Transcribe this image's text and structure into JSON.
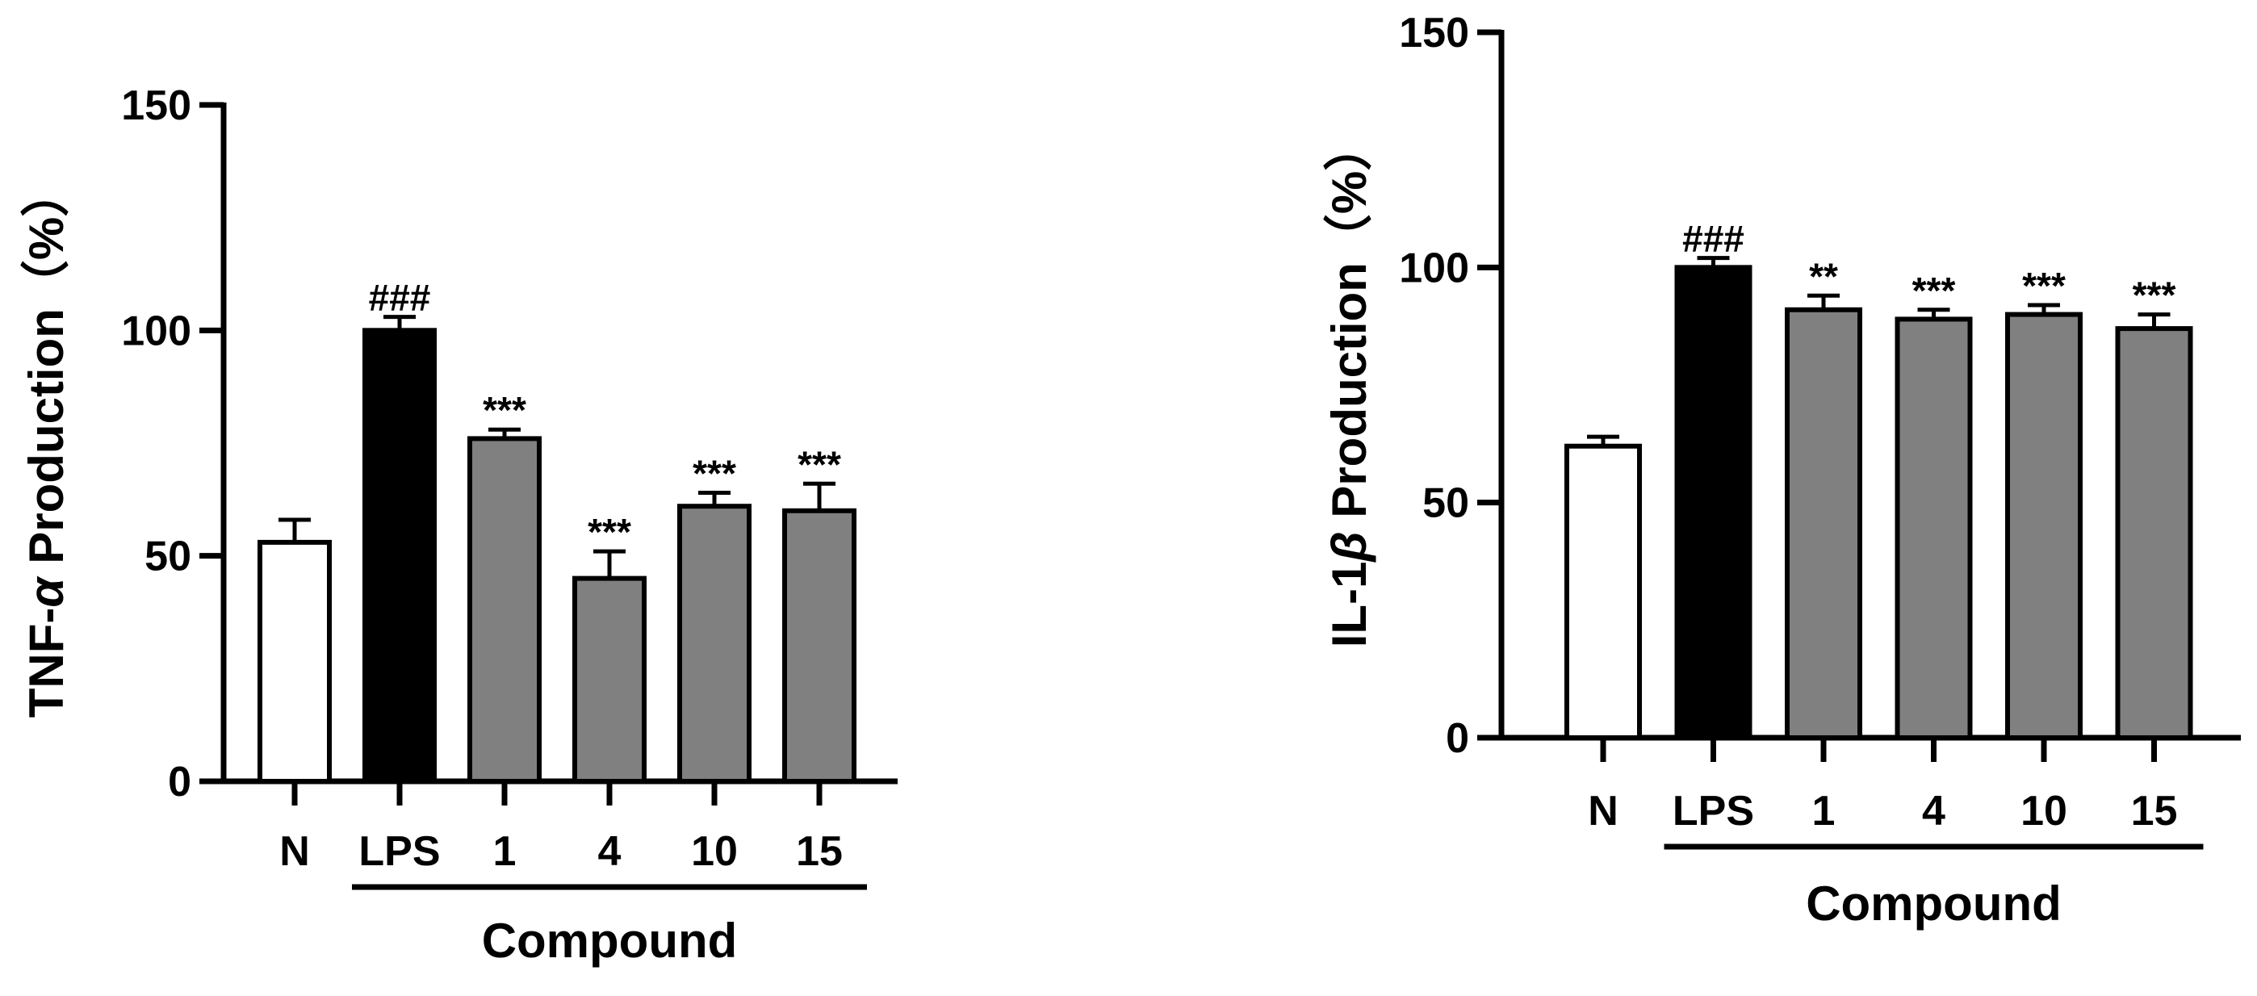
{
  "chart_data": [
    {
      "type": "bar",
      "ylabel": "TNF-α Production（%）",
      "ylabel_parts": {
        "prefix": "TNF-",
        "greek": "α",
        "suffix": " Production（%）"
      },
      "categories": [
        "N",
        "LPS",
        "1",
        "4",
        "10",
        "15"
      ],
      "values": [
        53,
        100,
        76,
        45,
        61,
        60
      ],
      "errors": [
        5,
        3,
        2,
        6,
        3,
        6
      ],
      "significance": [
        "",
        "###",
        "***",
        "***",
        "***",
        "***"
      ],
      "bar_colors": [
        "#ffffff",
        "#000000",
        "#808080",
        "#808080",
        "#808080",
        "#808080"
      ],
      "group_label": "Compound",
      "group_categories": [
        "1",
        "4",
        "10",
        "15"
      ],
      "ylim": [
        0,
        150
      ],
      "yticks": [
        0,
        50,
        100,
        150
      ],
      "grid": false,
      "legend": "none"
    },
    {
      "type": "bar",
      "ylabel": "IL-1β Production（%）",
      "ylabel_parts": {
        "prefix": "IL-1",
        "greek": "β",
        "suffix": " Production（%）"
      },
      "categories": [
        "N",
        "LPS",
        "1",
        "4",
        "10",
        "15"
      ],
      "values": [
        62,
        100,
        91,
        89,
        90,
        87
      ],
      "errors": [
        2,
        2,
        3,
        2,
        2,
        3
      ],
      "significance": [
        "",
        "###",
        "**",
        "***",
        "***",
        "***"
      ],
      "bar_colors": [
        "#ffffff",
        "#000000",
        "#808080",
        "#808080",
        "#808080",
        "#808080"
      ],
      "group_label": "Compound",
      "group_categories": [
        "1",
        "4",
        "10",
        "15"
      ],
      "ylim": [
        0,
        150
      ],
      "yticks": [
        0,
        50,
        100,
        150
      ],
      "grid": false,
      "legend": "none"
    }
  ]
}
